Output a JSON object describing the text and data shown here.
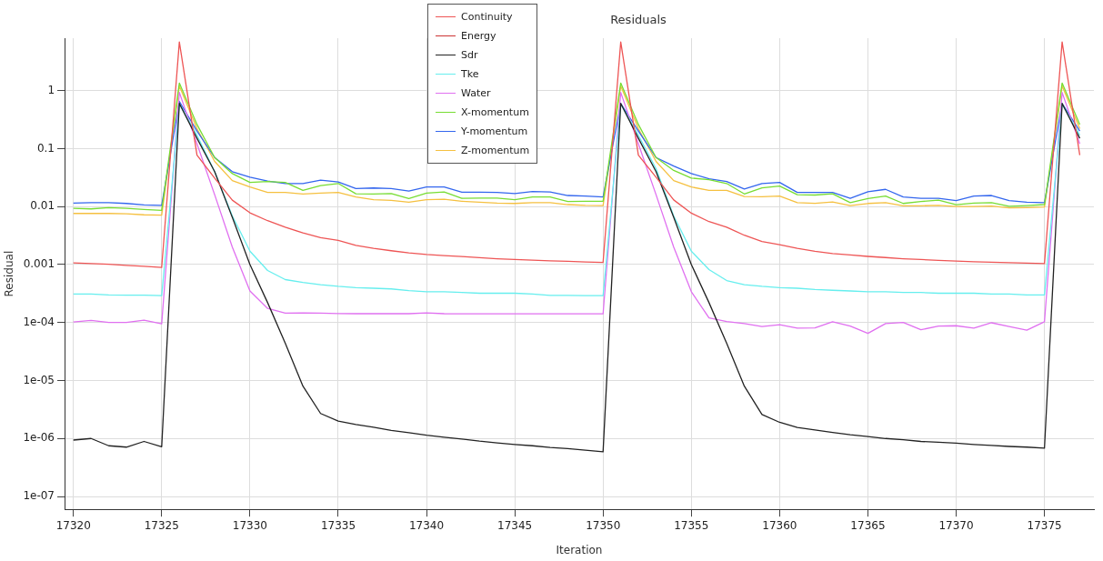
{
  "chart_data": {
    "type": "line",
    "title": "Residuals",
    "xlabel": "Iteration",
    "ylabel": "Residual",
    "x": [
      17320,
      17321,
      17322,
      17323,
      17324,
      17325,
      17326,
      17327,
      17328,
      17329,
      17330,
      17331,
      17332,
      17333,
      17334,
      17335,
      17336,
      17337,
      17338,
      17339,
      17340,
      17341,
      17342,
      17343,
      17344,
      17345,
      17346,
      17347,
      17348,
      17349,
      17350,
      17351,
      17352,
      17353,
      17354,
      17355,
      17356,
      17357,
      17358,
      17359,
      17360,
      17361,
      17362,
      17363,
      17364,
      17365,
      17366,
      17367,
      17368,
      17369,
      17370,
      17371,
      17372,
      17373,
      17374,
      17375,
      17376,
      17377
    ],
    "xlim": [
      17319.5,
      17377.8
    ],
    "xticks": [
      17320,
      17325,
      17330,
      17335,
      17340,
      17345,
      17350,
      17355,
      17360,
      17365,
      17370,
      17375
    ],
    "log": true,
    "ylim": [
      6e-08,
      8
    ],
    "yticks": [
      {
        "value": 1e-07,
        "label": "1e-07"
      },
      {
        "value": 1e-06,
        "label": "1e-06"
      },
      {
        "value": 1e-05,
        "label": "1e-05"
      },
      {
        "value": 0.0001,
        "label": "1e-04"
      },
      0.001,
      0.01,
      0.1,
      1
    ],
    "grid": true,
    "legend": "top",
    "marker": "none",
    "line_style": "solid",
    "series": [
      {
        "name": "Continuity",
        "color": "#ee5555",
        "values": [
          0.00107,
          0.00104,
          0.00101,
          0.00097,
          0.00093,
          0.00089,
          6.9,
          0.077,
          0.031,
          0.0129,
          0.0078,
          0.0057,
          0.0044,
          0.0035,
          0.0029,
          0.0026,
          0.00214,
          0.0019,
          0.00173,
          0.00159,
          0.00149,
          0.00142,
          0.00137,
          0.00131,
          0.00126,
          0.00122,
          0.00119,
          0.00116,
          0.00114,
          0.00111,
          0.00109,
          6.9,
          0.077,
          0.032,
          0.013,
          0.0077,
          0.0055,
          0.0044,
          0.0032,
          0.0025,
          0.0022,
          0.0019,
          0.00169,
          0.00155,
          0.00146,
          0.00138,
          0.00132,
          0.00126,
          0.00122,
          0.00118,
          0.00115,
          0.00112,
          0.0011,
          0.00108,
          0.00106,
          0.00104,
          6.9,
          0.077
        ]
      },
      {
        "name": "Energy",
        "color": "#cc3333",
        "values": [
          null,
          null,
          null,
          null,
          null,
          null,
          null,
          null,
          null,
          null,
          null,
          null,
          null,
          null,
          null,
          null,
          null,
          null,
          null,
          null,
          null,
          null,
          null,
          null,
          null,
          null,
          null,
          null,
          null,
          null,
          null,
          null,
          null,
          null,
          null,
          null,
          null,
          null,
          null,
          null,
          null,
          null,
          null,
          null,
          null,
          null,
          null,
          null,
          null,
          null,
          null,
          null,
          null,
          null,
          null,
          null,
          null,
          null
        ]
      },
      {
        "name": "Sdr",
        "color": "#222222",
        "values": [
          9.4e-07,
          1e-06,
          7.5e-07,
          7.1e-07,
          8.9e-07,
          7.2e-07,
          0.6,
          0.15,
          0.04,
          0.0065,
          0.001,
          0.00022,
          4.4e-05,
          8e-06,
          2.7e-06,
          2e-06,
          1.74e-06,
          1.57e-06,
          1.38e-06,
          1.26e-06,
          1.14e-06,
          1.05e-06,
          9.8e-07,
          9e-07,
          8.4e-07,
          7.9e-07,
          7.5e-07,
          7e-07,
          6.7e-07,
          6.3e-07,
          5.9e-07,
          0.6,
          0.15,
          0.04,
          0.0065,
          0.001,
          0.00022,
          4.4e-05,
          8e-06,
          2.6e-06,
          1.9e-06,
          1.55e-06,
          1.4e-06,
          1.27e-06,
          1.16e-06,
          1.08e-06,
          1e-06,
          9.5e-07,
          8.9e-07,
          8.6e-07,
          8.3e-07,
          7.9e-07,
          7.6e-07,
          7.3e-07,
          7.1e-07,
          6.8e-07,
          0.6,
          0.15
        ]
      },
      {
        "name": "Tke",
        "color": "#66eeee",
        "values": [
          0.00031,
          0.00031,
          0.0003,
          0.000296,
          0.000296,
          0.00029,
          0.58,
          0.17,
          0.04,
          0.0069,
          0.0017,
          0.00079,
          0.00055,
          0.00049,
          0.00045,
          0.00042,
          0.0004,
          0.00039,
          0.00038,
          0.000356,
          0.00034,
          0.00034,
          0.00033,
          0.00032,
          0.00032,
          0.00032,
          0.00031,
          0.000294,
          0.000294,
          0.00029,
          0.00029,
          0.58,
          0.17,
          0.045,
          0.0069,
          0.0017,
          0.00082,
          0.00053,
          0.00045,
          0.00042,
          0.0004,
          0.00039,
          0.00037,
          0.00036,
          0.00035,
          0.00034,
          0.00034,
          0.00033,
          0.00033,
          0.00032,
          0.00032,
          0.00032,
          0.00031,
          0.00031,
          0.0003,
          0.0003,
          0.58,
          0.17
        ]
      },
      {
        "name": "Water",
        "color": "#e070f0",
        "values": [
          0.000102,
          0.000109,
          0.0001,
          0.0001,
          0.00011,
          9.5e-05,
          0.93,
          0.12,
          0.016,
          0.002,
          0.00035,
          0.000175,
          0.000145,
          0.000147,
          0.000145,
          0.000143,
          0.000142,
          0.000142,
          0.000142,
          0.000142,
          0.000147,
          0.000142,
          0.000141,
          0.000141,
          0.000141,
          0.000141,
          0.000141,
          0.000141,
          0.000141,
          0.000141,
          0.000141,
          0.93,
          0.12,
          0.016,
          0.002,
          0.00034,
          0.00012,
          0.000104,
          9.6e-05,
          8.5e-05,
          9.2e-05,
          8e-05,
          8.1e-05,
          0.000103,
          8.7e-05,
          6.5e-05,
          9.6e-05,
          0.0001,
          7.5e-05,
          8.7e-05,
          8.8e-05,
          8e-05,
          9.9e-05,
          8.5e-05,
          7.4e-05,
          0.000103,
          0.93,
          0.12
        ]
      },
      {
        "name": "X-momentum",
        "color": "#77dd33",
        "values": [
          0.0093,
          0.0091,
          0.0096,
          0.0093,
          0.0089,
          0.0086,
          1.35,
          0.26,
          0.07,
          0.037,
          0.026,
          0.027,
          0.026,
          0.019,
          0.023,
          0.025,
          0.0166,
          0.0165,
          0.0168,
          0.0137,
          0.017,
          0.0179,
          0.0139,
          0.014,
          0.014,
          0.0131,
          0.0146,
          0.0146,
          0.0122,
          0.0123,
          0.0123,
          1.35,
          0.26,
          0.07,
          0.042,
          0.031,
          0.029,
          0.025,
          0.0165,
          0.021,
          0.0226,
          0.016,
          0.0158,
          0.0166,
          0.0117,
          0.0137,
          0.0152,
          0.0113,
          0.0122,
          0.0129,
          0.0108,
          0.0115,
          0.0117,
          0.0101,
          0.0104,
          0.0108,
          1.35,
          0.26
        ]
      },
      {
        "name": "Y-momentum",
        "color": "#3366ee",
        "values": [
          0.0115,
          0.0117,
          0.0117,
          0.0113,
          0.0107,
          0.0105,
          0.65,
          0.2,
          0.07,
          0.04,
          0.032,
          0.0275,
          0.025,
          0.025,
          0.0286,
          0.0266,
          0.0204,
          0.0209,
          0.0204,
          0.0185,
          0.0217,
          0.0217,
          0.0177,
          0.0177,
          0.0175,
          0.0168,
          0.0181,
          0.0179,
          0.0155,
          0.0152,
          0.0146,
          0.6,
          0.2,
          0.07,
          0.05,
          0.037,
          0.03,
          0.027,
          0.02,
          0.025,
          0.026,
          0.0175,
          0.0175,
          0.0175,
          0.0139,
          0.018,
          0.0198,
          0.0146,
          0.0139,
          0.0139,
          0.0127,
          0.0152,
          0.0155,
          0.0127,
          0.0119,
          0.0117,
          0.6,
          0.2
        ]
      },
      {
        "name": "Z-momentum",
        "color": "#f5c040",
        "values": [
          0.0076,
          0.0076,
          0.0076,
          0.0075,
          0.0072,
          0.0071,
          1.2,
          0.22,
          0.06,
          0.028,
          0.0217,
          0.0175,
          0.0175,
          0.0165,
          0.017,
          0.0175,
          0.0146,
          0.0131,
          0.0128,
          0.0119,
          0.0131,
          0.0134,
          0.0123,
          0.0119,
          0.0115,
          0.0113,
          0.0117,
          0.0117,
          0.0108,
          0.0105,
          0.0104,
          1.2,
          0.22,
          0.06,
          0.028,
          0.0217,
          0.019,
          0.019,
          0.0149,
          0.0148,
          0.0152,
          0.0117,
          0.0114,
          0.012,
          0.0104,
          0.0113,
          0.0117,
          0.0103,
          0.0103,
          0.0105,
          0.01,
          0.01,
          0.0102,
          0.0095,
          0.0096,
          0.0098,
          1.2,
          0.22
        ]
      }
    ]
  }
}
